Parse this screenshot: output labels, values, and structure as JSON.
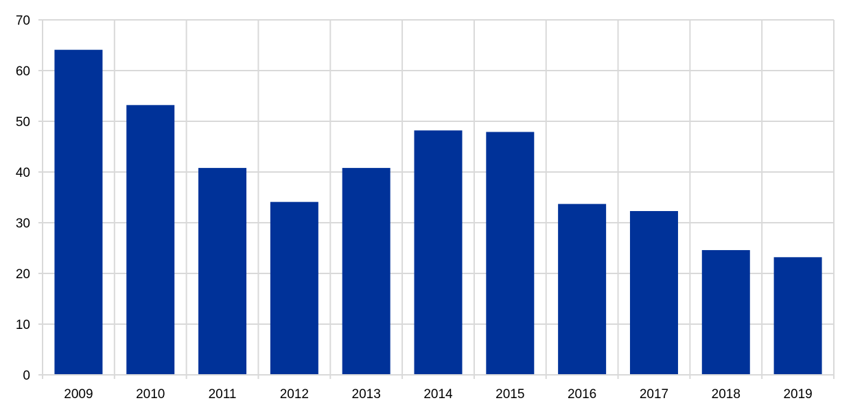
{
  "chart_data": {
    "type": "bar",
    "title": "",
    "xlabel": "",
    "ylabel": "",
    "categories": [
      "2009",
      "2010",
      "2011",
      "2012",
      "2013",
      "2014",
      "2015",
      "2016",
      "2017",
      "2018",
      "2019"
    ],
    "values": [
      64.1,
      53.2,
      40.8,
      34.1,
      40.8,
      48.2,
      47.9,
      33.7,
      32.3,
      24.6,
      23.2
    ],
    "ylim": [
      0,
      70
    ],
    "yticks": [
      "0",
      "10",
      "20",
      "30",
      "40",
      "50",
      "60",
      "70"
    ],
    "grid": true,
    "legend": "none",
    "colors": {
      "bar": "#003299",
      "grid": "#d9d9d9",
      "axis": "#d9d9d9",
      "text": "#000000"
    }
  }
}
